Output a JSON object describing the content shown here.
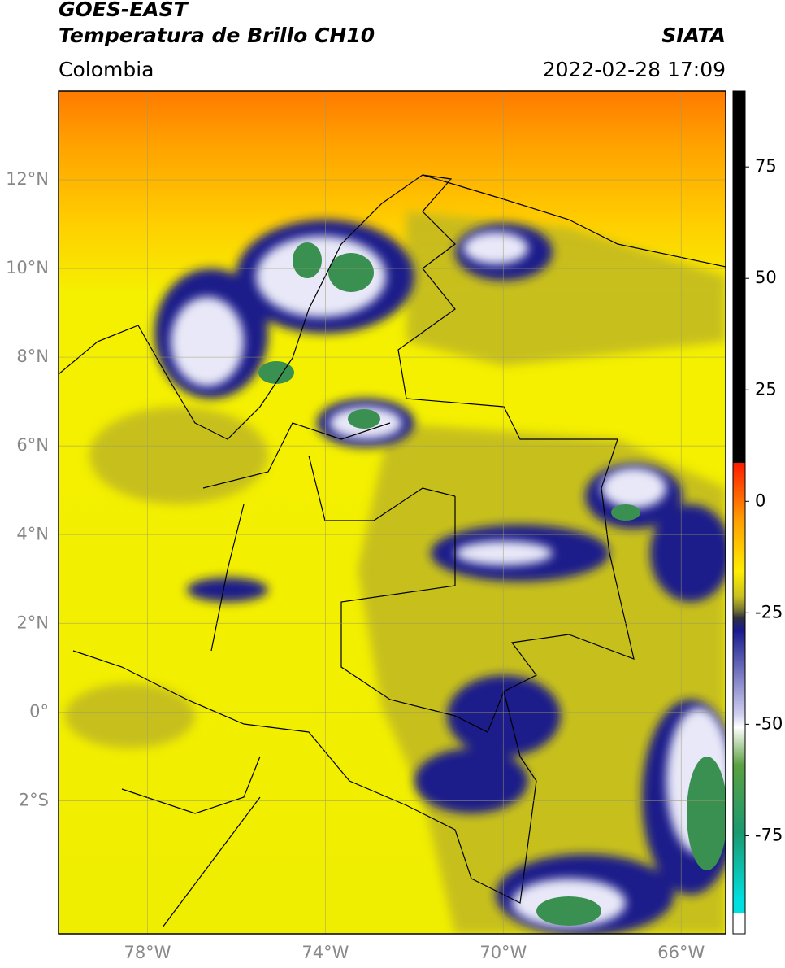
{
  "header": {
    "agency": "GOES-EAST",
    "product": "Temperatura de Brillo CH10",
    "source": "SIATA",
    "region": "Colombia",
    "datetime": "2022-02-28 17:09"
  },
  "map": {
    "lonlim": [
      -80,
      -65
    ],
    "latlim": [
      -5,
      14
    ],
    "lon_ticks": [
      {
        "value": -78,
        "label": "78°W"
      },
      {
        "value": -74,
        "label": "74°W"
      },
      {
        "value": -70,
        "label": "70°W"
      },
      {
        "value": -66,
        "label": "66°W"
      }
    ],
    "lat_ticks": [
      {
        "value": 12,
        "label": "12°N"
      },
      {
        "value": 10,
        "label": "10°N"
      },
      {
        "value": 8,
        "label": "8°N"
      },
      {
        "value": 6,
        "label": "6°N"
      },
      {
        "value": 4,
        "label": "4°N"
      },
      {
        "value": 2,
        "label": "2°N"
      },
      {
        "value": 0,
        "label": "0°"
      },
      {
        "value": -2,
        "label": "2°S"
      }
    ]
  },
  "colorbar": {
    "lim": [
      -97,
      92
    ],
    "ticks": [
      75,
      50,
      25,
      0,
      -25,
      -50,
      -75
    ]
  }
}
